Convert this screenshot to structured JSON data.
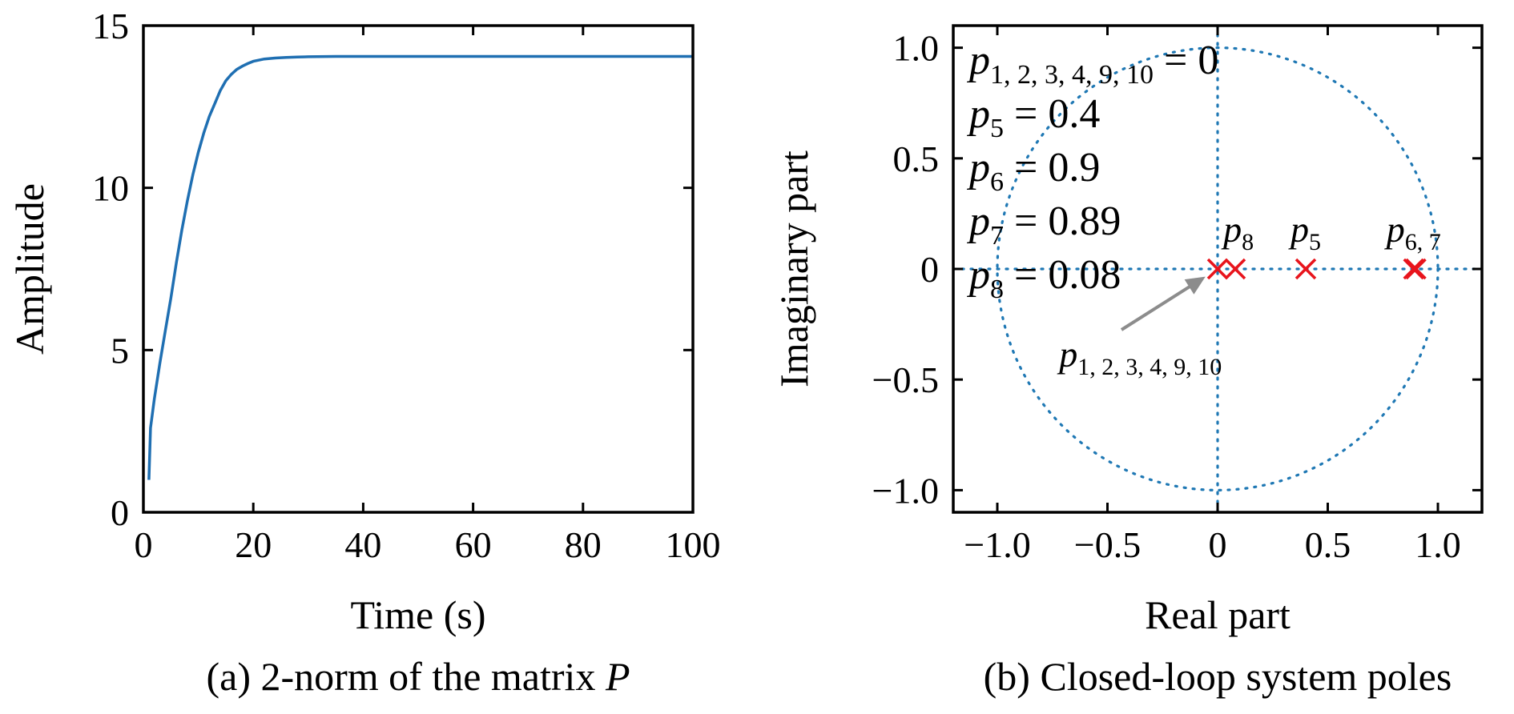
{
  "chart_data": [
    {
      "type": "line",
      "caption": "(a) 2-norm of the matrix P",
      "caption_main": "(a) 2-norm of the matrix ",
      "caption_var": "P",
      "xlabel": "Time (s)",
      "ylabel": "Amplitude",
      "xlim": [
        0,
        100
      ],
      "ylim": [
        0,
        15
      ],
      "xticks": [
        "0",
        "20",
        "40",
        "60",
        "80",
        "100"
      ],
      "yticks": [
        "0",
        "5",
        "10",
        "15"
      ],
      "grid": false,
      "series": [
        {
          "color": "#1f6fb2",
          "x": [
            1,
            1.3,
            2,
            3,
            4,
            5,
            6,
            7,
            8,
            9,
            10,
            11,
            12,
            13,
            14,
            15,
            16,
            17,
            18,
            19,
            20,
            22,
            24,
            26,
            28,
            30,
            35,
            40,
            50,
            60,
            70,
            80,
            90,
            100
          ],
          "y": [
            1.0,
            2.6,
            3.5,
            4.6,
            5.6,
            6.6,
            7.7,
            8.7,
            9.6,
            10.4,
            11.1,
            11.7,
            12.2,
            12.6,
            13.0,
            13.3,
            13.5,
            13.65,
            13.75,
            13.83,
            13.9,
            13.97,
            14.0,
            14.02,
            14.03,
            14.04,
            14.05,
            14.05,
            14.05,
            14.05,
            14.05,
            14.05,
            14.05,
            14.05
          ]
        }
      ]
    },
    {
      "type": "scatter",
      "caption": "(b) Closed-loop system poles",
      "xlabel": "Real part",
      "ylabel": "Imaginary part",
      "xlim": [
        -1.2,
        1.2
      ],
      "ylim": [
        -1.1,
        1.1
      ],
      "xticks": [
        "−1.0",
        "−0.5",
        "0",
        "0.5",
        "1.0"
      ],
      "yticks": [
        "1.0",
        "0.5",
        "0",
        "−0.5",
        "−1.0"
      ],
      "unit_circle": true,
      "marker_color": "#e8141c",
      "reference_color": "#1f78b4",
      "poles": [
        {
          "re": 0,
          "im": 0
        },
        {
          "re": 0.08,
          "im": 0
        },
        {
          "re": 0.4,
          "im": 0
        },
        {
          "re": 0.89,
          "im": 0
        },
        {
          "re": 0.9,
          "im": 0
        }
      ],
      "annotations": [
        {
          "sym": "p",
          "sub": "1, 2, 3, 4, 9, 10",
          "rest": " = 0"
        },
        {
          "sym": "p",
          "sub": "5",
          "rest": " = 0.4"
        },
        {
          "sym": "p",
          "sub": "6",
          "rest": " = 0.9"
        },
        {
          "sym": "p",
          "sub": "7",
          "rest": " = 0.89"
        },
        {
          "sym": "p",
          "sub": "8",
          "rest": " = 0.08"
        }
      ],
      "pole_labels": [
        {
          "sym": "p",
          "sub": "8"
        },
        {
          "sym": "p",
          "sub": "5"
        },
        {
          "sym": "p",
          "sub": "6, 7"
        },
        {
          "sym": "p",
          "sub": "1, 2, 3, 4, 9, 10"
        }
      ]
    }
  ]
}
